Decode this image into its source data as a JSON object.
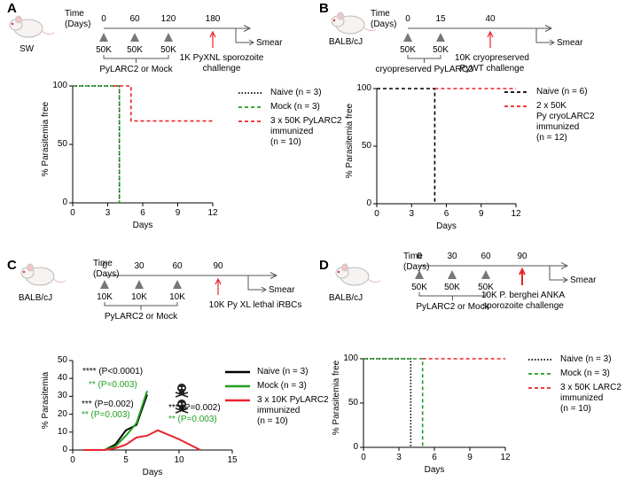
{
  "schematics": [
    {
      "label": "A",
      "strain": "SW",
      "time_label": "Time\n(Days)",
      "days": [
        0,
        60,
        120,
        180
      ],
      "doses": [
        "50K",
        "50K",
        "50K"
      ],
      "regimen": "PyLARC2 or Mock",
      "challenge": "1K PyXNL sporozoite\nchallenge",
      "readout": "Smear"
    },
    {
      "label": "B",
      "strain": "BALB/cJ",
      "time_label": "Time\n(Days)",
      "days": [
        0,
        15,
        40
      ],
      "doses": [
        "50K",
        "50K"
      ],
      "regimen": "cryopreserved PyLARC2",
      "challenge": "10K cryopreserved\nPyWT challenge",
      "readout": "Smear"
    },
    {
      "label": "C",
      "strain": "BALB/cJ",
      "time_label": "Time\n(Days)",
      "days": [
        0,
        30,
        60,
        90
      ],
      "doses": [
        "10K",
        "10K",
        "10K"
      ],
      "regimen": "PyLARC2 or Mock",
      "challenge": "10K Py XL lethal iRBCs",
      "readout": "Smear"
    },
    {
      "label": "D",
      "strain": "BALB/cJ",
      "time_label": "Time\n(Days)",
      "days": [
        0,
        30,
        60,
        90
      ],
      "doses": [
        "50K",
        "50K",
        "50K"
      ],
      "regimen": "PyLARC2 or Mock",
      "challenge": "10K P. berghei ANKA\nsporozoite challenge",
      "readout": "Smear"
    }
  ],
  "chart_data": [
    {
      "type": "line",
      "y_label": "% Parasitemia free",
      "x_label": "Days",
      "xlim": [
        0,
        12
      ],
      "ylim": [
        0,
        100
      ],
      "xticks": [
        0,
        3,
        6,
        9,
        12
      ],
      "yticks": [
        0,
        50,
        100
      ],
      "series": [
        {
          "name": "Naive (n = 3)",
          "color": "#000000",
          "dash": "dotted",
          "x": [
            0,
            4,
            4
          ],
          "values": [
            100,
            100,
            0
          ]
        },
        {
          "name": "Mock (n = 3)",
          "color": "#1f9e1f",
          "dash": "dashed",
          "x": [
            0,
            4,
            4
          ],
          "values": [
            100,
            100,
            0
          ]
        },
        {
          "name": "3 x 50K PyLARC2\nimmunized\n(n = 10)",
          "color": "#e8252b",
          "dash": "dashed",
          "x": [
            3.5,
            5,
            5,
            12
          ],
          "values": [
            100,
            100,
            70,
            70
          ]
        }
      ]
    },
    {
      "type": "line",
      "y_label": "% Parasitemia free",
      "x_label": "Days",
      "xlim": [
        0,
        12
      ],
      "ylim": [
        0,
        100
      ],
      "xticks": [
        0,
        3,
        6,
        9,
        12
      ],
      "yticks": [
        0,
        50,
        100
      ],
      "series": [
        {
          "name": "Naive (n = 6)",
          "color": "#000000",
          "dash": "dashed",
          "x": [
            0,
            5,
            5
          ],
          "values": [
            100,
            100,
            0
          ]
        },
        {
          "name": "2 x 50K\nPy cryoLARC2\nimmunized\n(n = 12)",
          "color": "#e8252b",
          "dash": "dashed",
          "x": [
            5,
            12
          ],
          "values": [
            100,
            100
          ]
        }
      ]
    },
    {
      "type": "line",
      "y_label": "% Parasitemia",
      "x_label": "Days",
      "xlim": [
        0,
        15
      ],
      "ylim": [
        0,
        50
      ],
      "xticks": [
        0,
        5,
        10,
        15
      ],
      "yticks": [
        0,
        10,
        20,
        30,
        40,
        50
      ],
      "series": [
        {
          "name": "Naive (n = 3)",
          "color": "#000000",
          "dash": "solid",
          "x": [
            1,
            2,
            3,
            4,
            5,
            6,
            7
          ],
          "values": [
            0,
            0,
            0,
            3,
            11,
            14,
            31
          ]
        },
        {
          "name": "Mock (n = 3)",
          "color": "#1f9e1f",
          "dash": "solid",
          "x": [
            1,
            2,
            3,
            4,
            5,
            6,
            7
          ],
          "values": [
            0,
            0,
            0,
            2,
            8,
            15,
            33
          ]
        },
        {
          "name": "3 x 10K PyLARC2\nimmunized\n(n = 10)",
          "color": "#e8252b",
          "dash": "solid",
          "x": [
            1,
            2,
            3,
            4,
            5,
            6,
            7,
            8,
            10,
            12
          ],
          "values": [
            0,
            0,
            0,
            1,
            3,
            7,
            8,
            11,
            6,
            0
          ]
        }
      ],
      "annotations": [
        {
          "text": "**** (P<0.0001)",
          "color": "#000000"
        },
        {
          "text": "** (P=0.003)",
          "color": "#1f9e1f"
        },
        {
          "text": "*** (P=0.002)",
          "color": "#000000"
        },
        {
          "text": "** (P=0.003)",
          "color": "#1f9e1f"
        },
        {
          "text": "*** (P=0.002)",
          "color": "#000000"
        },
        {
          "text": "** (P=0.003)",
          "color": "#1f9e1f"
        }
      ]
    },
    {
      "type": "line",
      "y_label": "% Parasitemia free",
      "x_label": "Days",
      "xlim": [
        0,
        12
      ],
      "ylim": [
        0,
        100
      ],
      "xticks": [
        0,
        3,
        6,
        9,
        12
      ],
      "yticks": [
        0,
        50,
        100
      ],
      "series": [
        {
          "name": "Naive (n = 3)",
          "color": "#000000",
          "dash": "dotted",
          "x": [
            0,
            4,
            4
          ],
          "values": [
            100,
            100,
            0
          ]
        },
        {
          "name": "Mock (n = 3)",
          "color": "#1f9e1f",
          "dash": "dashed",
          "x": [
            0,
            5,
            5
          ],
          "values": [
            100,
            100,
            0
          ]
        },
        {
          "name": "3 x 50K LARC2\nimmunized\n(n = 10)",
          "color": "#e8252b",
          "dash": "dashed",
          "x": [
            5,
            12
          ],
          "values": [
            100,
            100
          ]
        }
      ]
    }
  ]
}
